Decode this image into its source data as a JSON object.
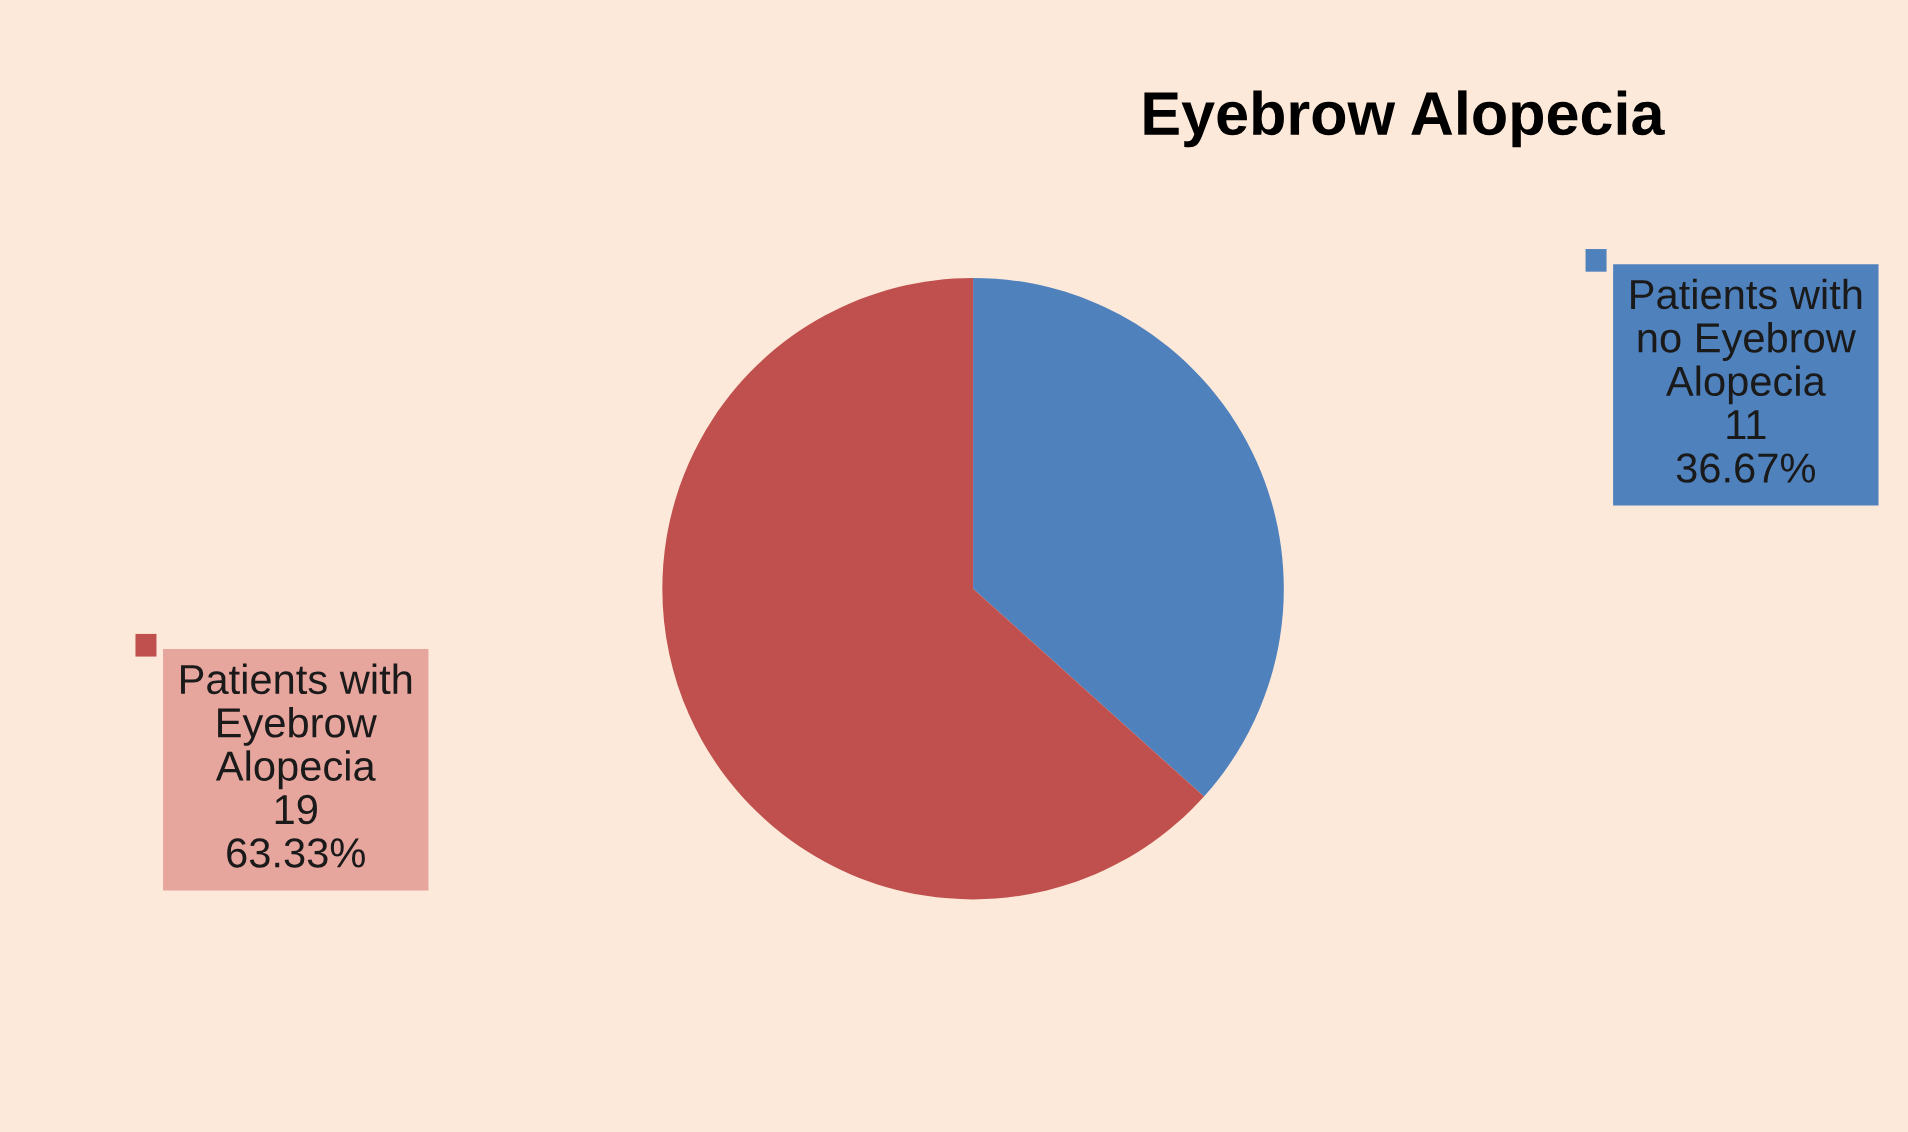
{
  "chart_data": {
    "type": "pie",
    "title": "Eyebrow Alopecia",
    "categories": [
      "Patients with no Eyebrow Alopecia",
      "Patients with Eyebrow Alopecia"
    ],
    "values": [
      11,
      19
    ],
    "colors": [
      "#4f81bd",
      "#c0504d"
    ],
    "value_labels": [
      "11\n36.67%",
      "19\n63.33%"
    ],
    "legend": "right"
  }
}
